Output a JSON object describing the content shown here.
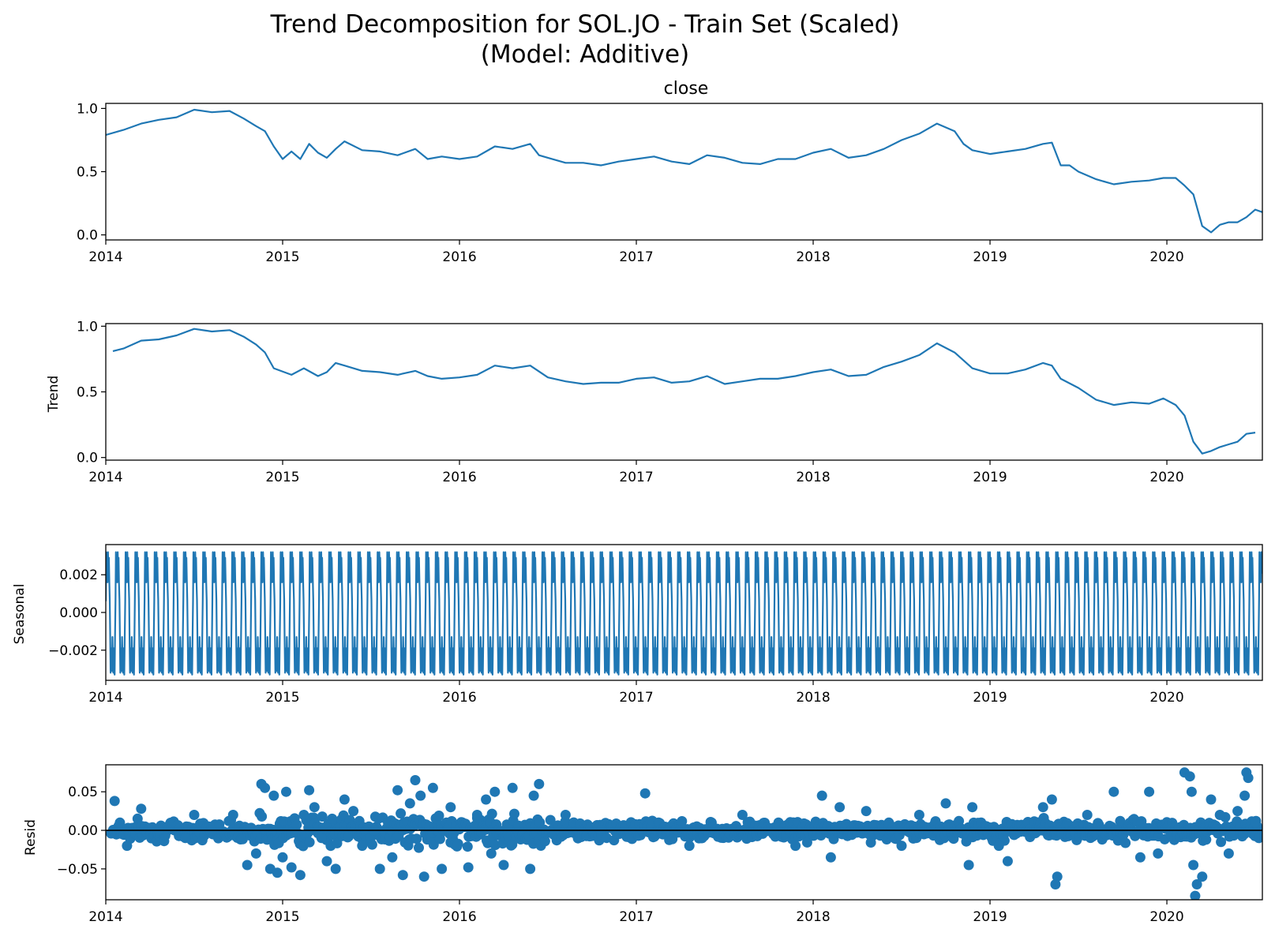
{
  "figure": {
    "title_line1": "Trend Decomposition for SOL.JO - Train Set (Scaled)",
    "title_line2": "(Model: Additive)"
  },
  "colors": {
    "series": "#1f77b4",
    "axis": "#000000",
    "zero_line": "#000000"
  },
  "x_ticks": [
    "2014",
    "2015",
    "2016",
    "2017",
    "2018",
    "2019",
    "2020"
  ],
  "chart_data": [
    {
      "type": "line",
      "title": "close",
      "ylabel": "",
      "xlim": [
        2014.0,
        2020.54
      ],
      "ylim": [
        -0.04,
        1.04
      ],
      "yticks": [
        0.0,
        0.5,
        1.0
      ],
      "ytick_labels": [
        "0.0",
        "0.5",
        "1.0"
      ],
      "series": [
        {
          "x": [
            2014.0,
            2014.1,
            2014.2,
            2014.3,
            2014.4,
            2014.5,
            2014.6,
            2014.7,
            2014.78,
            2014.85,
            2014.9,
            2014.95,
            2015.0,
            2015.05,
            2015.1,
            2015.15,
            2015.2,
            2015.25,
            2015.3,
            2015.35,
            2015.45,
            2015.55,
            2015.65,
            2015.75,
            2015.82,
            2015.9,
            2016.0,
            2016.1,
            2016.2,
            2016.3,
            2016.4,
            2016.45,
            2016.5,
            2016.6,
            2016.7,
            2016.8,
            2016.9,
            2017.0,
            2017.1,
            2017.2,
            2017.3,
            2017.4,
            2017.5,
            2017.6,
            2017.7,
            2017.8,
            2017.9,
            2018.0,
            2018.1,
            2018.2,
            2018.3,
            2018.4,
            2018.5,
            2018.6,
            2018.7,
            2018.8,
            2018.85,
            2018.9,
            2019.0,
            2019.1,
            2019.2,
            2019.3,
            2019.35,
            2019.4,
            2019.45,
            2019.5,
            2019.6,
            2019.7,
            2019.8,
            2019.9,
            2019.98,
            2020.05,
            2020.1,
            2020.15,
            2020.2,
            2020.25,
            2020.3,
            2020.35,
            2020.4,
            2020.45,
            2020.5,
            2020.54
          ],
          "y": [
            0.79,
            0.83,
            0.88,
            0.91,
            0.93,
            0.99,
            0.97,
            0.98,
            0.92,
            0.86,
            0.82,
            0.7,
            0.6,
            0.66,
            0.6,
            0.72,
            0.65,
            0.61,
            0.68,
            0.74,
            0.67,
            0.66,
            0.63,
            0.68,
            0.6,
            0.62,
            0.6,
            0.62,
            0.7,
            0.68,
            0.72,
            0.63,
            0.61,
            0.57,
            0.57,
            0.55,
            0.58,
            0.6,
            0.62,
            0.58,
            0.56,
            0.63,
            0.61,
            0.57,
            0.56,
            0.6,
            0.6,
            0.65,
            0.68,
            0.61,
            0.63,
            0.68,
            0.75,
            0.8,
            0.88,
            0.82,
            0.72,
            0.67,
            0.64,
            0.66,
            0.68,
            0.72,
            0.73,
            0.55,
            0.55,
            0.5,
            0.44,
            0.4,
            0.42,
            0.43,
            0.45,
            0.45,
            0.39,
            0.32,
            0.07,
            0.02,
            0.08,
            0.1,
            0.1,
            0.14,
            0.2,
            0.18
          ]
        }
      ]
    },
    {
      "type": "line",
      "title": "",
      "ylabel": "Trend",
      "xlim": [
        2014.0,
        2020.54
      ],
      "ylim": [
        -0.02,
        1.02
      ],
      "yticks": [
        0.0,
        0.5,
        1.0
      ],
      "ytick_labels": [
        "0.0",
        "0.5",
        "1.0"
      ],
      "series": [
        {
          "x": [
            2014.04,
            2014.1,
            2014.2,
            2014.3,
            2014.4,
            2014.5,
            2014.6,
            2014.7,
            2014.78,
            2014.85,
            2014.9,
            2014.95,
            2015.05,
            2015.12,
            2015.2,
            2015.25,
            2015.3,
            2015.35,
            2015.45,
            2015.55,
            2015.65,
            2015.75,
            2015.82,
            2015.9,
            2016.0,
            2016.1,
            2016.2,
            2016.3,
            2016.4,
            2016.5,
            2016.6,
            2016.7,
            2016.8,
            2016.9,
            2017.0,
            2017.1,
            2017.2,
            2017.3,
            2017.4,
            2017.5,
            2017.6,
            2017.7,
            2017.8,
            2017.9,
            2018.0,
            2018.1,
            2018.2,
            2018.3,
            2018.4,
            2018.5,
            2018.6,
            2018.7,
            2018.8,
            2018.9,
            2019.0,
            2019.1,
            2019.2,
            2019.3,
            2019.35,
            2019.4,
            2019.5,
            2019.6,
            2019.7,
            2019.8,
            2019.9,
            2019.98,
            2020.05,
            2020.1,
            2020.15,
            2020.2,
            2020.25,
            2020.3,
            2020.35,
            2020.4,
            2020.45,
            2020.5
          ],
          "y": [
            0.81,
            0.83,
            0.89,
            0.9,
            0.93,
            0.98,
            0.96,
            0.97,
            0.92,
            0.86,
            0.8,
            0.68,
            0.63,
            0.68,
            0.62,
            0.65,
            0.72,
            0.7,
            0.66,
            0.65,
            0.63,
            0.66,
            0.62,
            0.6,
            0.61,
            0.63,
            0.7,
            0.68,
            0.7,
            0.61,
            0.58,
            0.56,
            0.57,
            0.57,
            0.6,
            0.61,
            0.57,
            0.58,
            0.62,
            0.56,
            0.58,
            0.6,
            0.6,
            0.62,
            0.65,
            0.67,
            0.62,
            0.63,
            0.69,
            0.73,
            0.78,
            0.87,
            0.8,
            0.68,
            0.64,
            0.64,
            0.67,
            0.72,
            0.7,
            0.6,
            0.53,
            0.44,
            0.4,
            0.42,
            0.41,
            0.45,
            0.4,
            0.32,
            0.12,
            0.03,
            0.05,
            0.08,
            0.1,
            0.12,
            0.18,
            0.19
          ]
        }
      ]
    },
    {
      "type": "line",
      "title": "",
      "ylabel": "Seasonal",
      "xlim": [
        2014.0,
        2020.54
      ],
      "ylim": [
        -0.0036,
        0.0036
      ],
      "yticks": [
        -0.002,
        0.0,
        0.002
      ],
      "ytick_labels": [
        "−0.002",
        "0.000",
        "0.002"
      ],
      "period_years": 0.0548,
      "cycle_y": [
        0.0006,
        0.0032,
        0.0017,
        0.0029,
        0.0016,
        0.0032,
        0.0021,
        0.0029,
        0.0016,
        0.0007,
        -0.0013,
        -0.0032,
        -0.0019,
        -0.0028,
        -0.0031,
        -0.0013,
        -0.0024,
        -0.0032,
        -0.0019,
        -0.0028,
        -0.0033,
        -0.0013
      ]
    },
    {
      "type": "scatter",
      "title": "",
      "ylabel": "Resid",
      "xlim": [
        2014.0,
        2020.54
      ],
      "ylim": [
        -0.09,
        0.085
      ],
      "yticks": [
        -0.05,
        0.0,
        0.05
      ],
      "ytick_labels": [
        "−0.05",
        "0.00",
        "0.05"
      ],
      "series": [
        {
          "x": [
            2014.05,
            2014.08,
            2014.12,
            2014.2,
            2014.3,
            2014.45,
            2014.5,
            2014.6,
            2014.72,
            2014.8,
            2014.85,
            2014.88,
            2014.9,
            2014.93,
            2014.95,
            2014.97,
            2015.0,
            2015.02,
            2015.05,
            2015.1,
            2015.12,
            2015.15,
            2015.18,
            2015.22,
            2015.25,
            2015.28,
            2015.3,
            2015.35,
            2015.4,
            2015.45,
            2015.52,
            2015.55,
            2015.62,
            2015.65,
            2015.68,
            2015.72,
            2015.75,
            2015.78,
            2015.8,
            2015.85,
            2015.9,
            2015.95,
            2016.05,
            2016.1,
            2016.15,
            2016.18,
            2016.2,
            2016.25,
            2016.3,
            2016.4,
            2016.42,
            2016.45,
            2016.6,
            2016.8,
            2017.05,
            2017.3,
            2017.6,
            2017.9,
            2018.05,
            2018.1,
            2018.15,
            2018.3,
            2018.5,
            2018.6,
            2018.75,
            2018.88,
            2018.9,
            2019.05,
            2019.1,
            2019.3,
            2019.35,
            2019.37,
            2019.38,
            2019.55,
            2019.7,
            2019.85,
            2019.9,
            2019.95,
            2020.1,
            2020.13,
            2020.14,
            2020.15,
            2020.16,
            2020.17,
            2020.2,
            2020.25,
            2020.3,
            2020.35,
            2020.4,
            2020.44,
            2020.45,
            2020.46,
            2020.5,
            2020.52
          ],
          "y": [
            0.038,
            0.01,
            -0.02,
            0.028,
            0.0,
            -0.01,
            0.02,
            0.0,
            0.02,
            -0.045,
            -0.03,
            0.06,
            0.055,
            -0.05,
            0.045,
            -0.055,
            -0.035,
            0.05,
            -0.048,
            -0.058,
            0.02,
            0.052,
            0.03,
            -0.01,
            -0.04,
            0.015,
            -0.05,
            0.04,
            0.025,
            -0.02,
            0.0,
            -0.05,
            -0.035,
            0.052,
            -0.058,
            0.035,
            0.065,
            0.045,
            -0.06,
            0.055,
            -0.05,
            0.03,
            -0.048,
            0.02,
            0.04,
            -0.03,
            0.05,
            -0.045,
            0.055,
            -0.05,
            0.045,
            0.06,
            0.02,
            0.0,
            0.048,
            -0.02,
            0.02,
            -0.02,
            0.045,
            -0.035,
            0.03,
            0.025,
            -0.02,
            0.02,
            0.035,
            -0.045,
            0.03,
            -0.02,
            -0.04,
            0.03,
            0.04,
            -0.07,
            -0.06,
            0.02,
            0.05,
            -0.035,
            0.05,
            -0.03,
            0.075,
            0.07,
            0.05,
            -0.045,
            -0.085,
            -0.07,
            -0.06,
            0.04,
            0.02,
            -0.03,
            0.025,
            0.045,
            0.075,
            0.068,
            0.01,
            -0.01
          ]
        }
      ],
      "zero_line": true
    }
  ]
}
